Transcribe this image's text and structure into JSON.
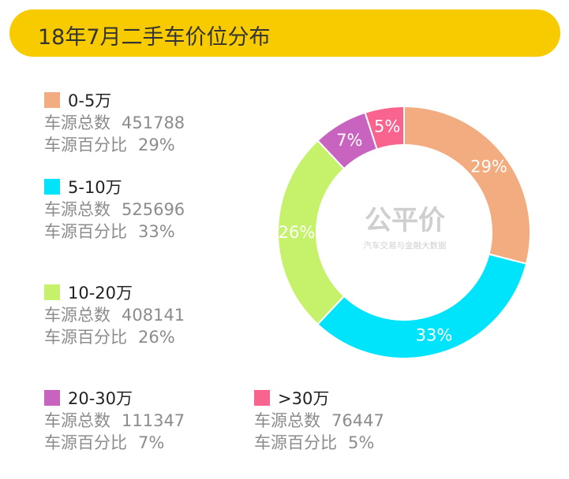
{
  "header": {
    "title": "18年7月二手车价位分布"
  },
  "labels": {
    "count_label": "车源总数",
    "share_label": "车源百分比"
  },
  "watermark": {
    "logo": "公平价",
    "tagline": "汽车交易与金融大数据"
  },
  "legend": [
    {
      "label": "0-5万",
      "count": "451788",
      "percent": "29%"
    },
    {
      "label": "5-10万",
      "count": "525696",
      "percent": "33%"
    },
    {
      "label": "10-20万",
      "count": "408141",
      "percent": "26%"
    },
    {
      "label": "20-30万",
      "count": "111347",
      "percent": "7%"
    },
    {
      "label": ">30万",
      "count": "76447",
      "percent": "5%"
    }
  ],
  "chart_data": {
    "type": "pie",
    "style": "donut",
    "title": "18年7月二手车价位分布",
    "categories": [
      "0-5万",
      "5-10万",
      "10-20万",
      "20-30万",
      ">30万"
    ],
    "values": [
      29,
      33,
      26,
      7,
      5
    ],
    "counts": [
      451788,
      525696,
      408141,
      111347,
      76447
    ],
    "data_labels": [
      "29%",
      "33%",
      "26%",
      "7%",
      "5%"
    ],
    "colors": [
      "#F2AC80",
      "#00E4FB",
      "#C6F26B",
      "#C863C0",
      "#F9648E"
    ],
    "accent_color": "#F7CB00",
    "legend_position": "left"
  }
}
